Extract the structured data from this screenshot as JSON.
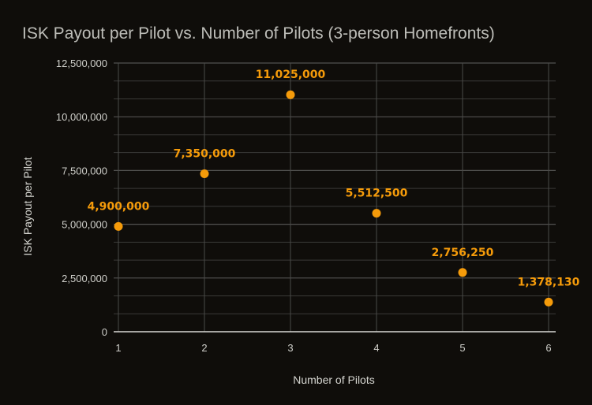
{
  "chart_data": {
    "type": "scatter",
    "title": "ISK Payout per Pilot vs. Number of Pilots (3-person Homefronts)",
    "xlabel": "Number of Pilots",
    "ylabel": "ISK Payout per Pilot",
    "x": [
      1,
      2,
      3,
      4,
      5,
      6
    ],
    "values": [
      4900000,
      7350000,
      11025000,
      5512500,
      2756250,
      1378130
    ],
    "data_labels": [
      "4,900,000",
      "7,350,000",
      "11,025,000",
      "5,512,500",
      "2,756,250",
      "1,378,130"
    ],
    "x_ticks": [
      "1",
      "2",
      "3",
      "4",
      "5",
      "6"
    ],
    "y_ticks": [
      {
        "value": 0,
        "label": "0"
      },
      {
        "value": 2500000,
        "label": "2,500,000"
      },
      {
        "value": 5000000,
        "label": "5,000,000"
      },
      {
        "value": 7500000,
        "label": "7,500,000"
      },
      {
        "value": 10000000,
        "label": "10,000,000"
      },
      {
        "value": 12500000,
        "label": "12,500,000"
      }
    ],
    "xlim": [
      1,
      6
    ],
    "ylim": [
      0,
      12500000
    ],
    "grid": true,
    "minor_gridlines_per_major": 2,
    "legend": "none",
    "colors": {
      "background": "#0f0d0a",
      "point": "#f59b0a",
      "label": "#f59b0a",
      "text": "#cfcfca"
    }
  }
}
